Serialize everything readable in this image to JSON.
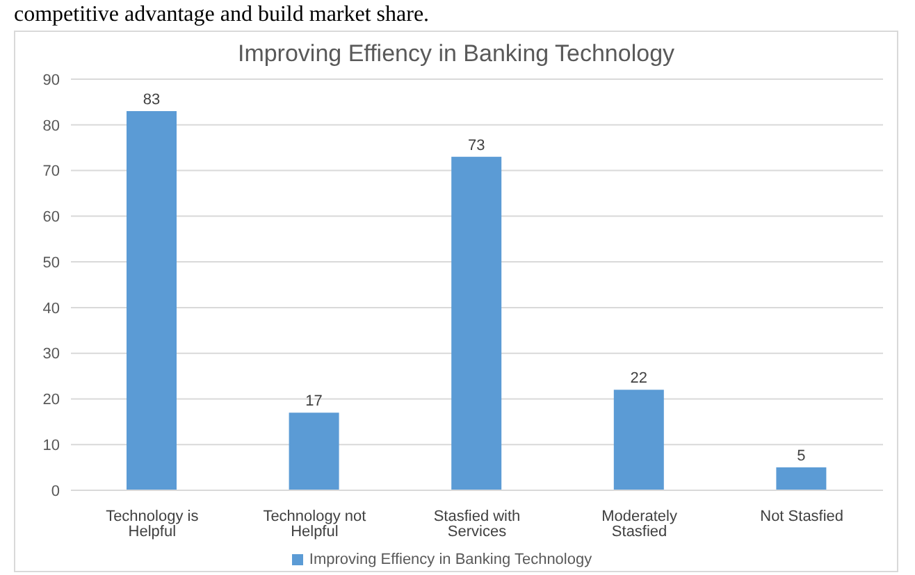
{
  "chart_data": {
    "type": "bar",
    "title": "Improving Effiency in Banking Technology",
    "annotations": [
      "competitive advantage and build market share."
    ],
    "categories": [
      "Technology is Helpful",
      "Technology  not Helpful",
      "Stasfied with Services",
      "Moderately Stasfied",
      "Not Stasfied"
    ],
    "series": [
      {
        "name": "Improving Effiency in Banking Technology",
        "color": "#5b9bd5",
        "values": [
          83,
          17,
          73,
          22,
          5
        ]
      }
    ],
    "ylim": [
      0,
      90
    ],
    "yticks": [
      0,
      10,
      20,
      30,
      40,
      50,
      60,
      70,
      80,
      90
    ],
    "grid": "y",
    "legend": "bottom",
    "data_labels": true
  }
}
